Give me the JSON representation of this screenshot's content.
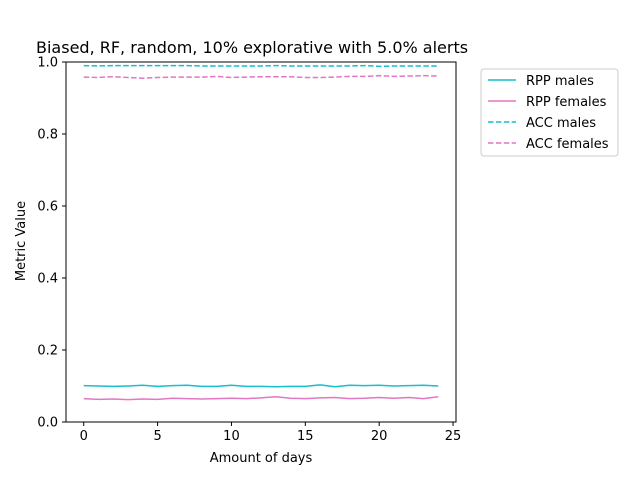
{
  "chart_data": {
    "type": "line",
    "title": "Biased, RF, random, 10% explorative with 5.0% alerts",
    "xlabel": "Amount of days",
    "ylabel": "Metric Value",
    "xlim": [
      -1.2,
      25.2
    ],
    "ylim": [
      0.0,
      1.0
    ],
    "xticks": [
      0,
      5,
      10,
      15,
      20,
      25
    ],
    "xtick_labels": [
      "0",
      "5",
      "10",
      "15",
      "20",
      "25"
    ],
    "yticks": [
      0.0,
      0.2,
      0.4,
      0.6,
      0.8,
      1.0
    ],
    "ytick_labels": [
      "0.0",
      "0.2",
      "0.4",
      "0.6",
      "0.8",
      "1.0"
    ],
    "grid": false,
    "legend_position": "outside-top-right",
    "x": [
      0,
      1,
      2,
      3,
      4,
      5,
      6,
      7,
      8,
      9,
      10,
      11,
      12,
      13,
      14,
      15,
      16,
      17,
      18,
      19,
      20,
      21,
      22,
      23,
      24
    ],
    "series": [
      {
        "name": "RPP males",
        "color": "#17becf",
        "style": "solid",
        "values": [
          0.101,
          0.1,
          0.099,
          0.1,
          0.102,
          0.099,
          0.101,
          0.102,
          0.099,
          0.099,
          0.102,
          0.099,
          0.099,
          0.098,
          0.099,
          0.099,
          0.103,
          0.098,
          0.102,
          0.101,
          0.102,
          0.1,
          0.101,
          0.102,
          0.1
        ]
      },
      {
        "name": "RPP females",
        "color": "#e377c2",
        "style": "solid",
        "values": [
          0.065,
          0.063,
          0.064,
          0.062,
          0.064,
          0.063,
          0.066,
          0.065,
          0.064,
          0.065,
          0.066,
          0.065,
          0.067,
          0.07,
          0.066,
          0.065,
          0.067,
          0.068,
          0.065,
          0.066,
          0.068,
          0.066,
          0.068,
          0.065,
          0.07
        ]
      },
      {
        "name": "ACC males",
        "color": "#17becf",
        "style": "dashed",
        "values": [
          0.99,
          0.989,
          0.99,
          0.99,
          0.99,
          0.99,
          0.99,
          0.99,
          0.989,
          0.989,
          0.989,
          0.989,
          0.989,
          0.99,
          0.989,
          0.989,
          0.989,
          0.989,
          0.989,
          0.99,
          0.988,
          0.989,
          0.989,
          0.989,
          0.989
        ]
      },
      {
        "name": "ACC females",
        "color": "#e377c2",
        "style": "dashed",
        "values": [
          0.958,
          0.957,
          0.959,
          0.957,
          0.955,
          0.957,
          0.958,
          0.958,
          0.958,
          0.96,
          0.957,
          0.958,
          0.959,
          0.959,
          0.959,
          0.957,
          0.957,
          0.958,
          0.96,
          0.96,
          0.962,
          0.96,
          0.961,
          0.962,
          0.961
        ]
      }
    ]
  }
}
